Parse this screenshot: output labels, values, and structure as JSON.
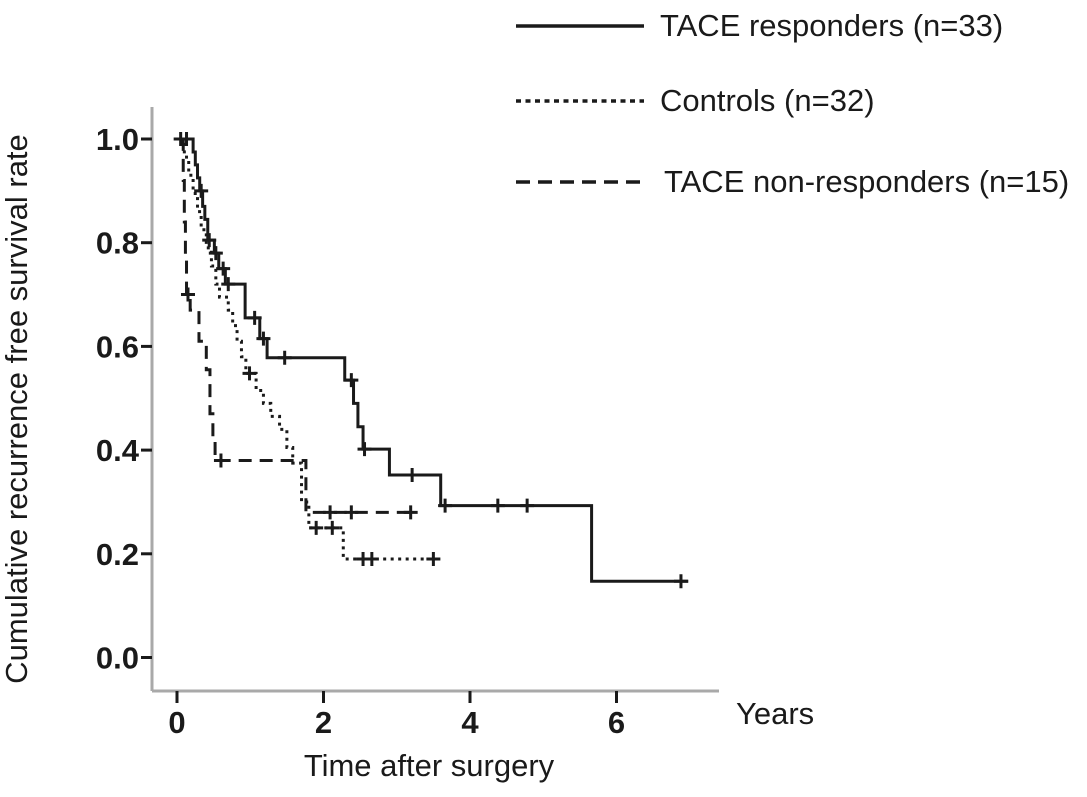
{
  "colors": {
    "curve": "#1a1a1a",
    "axis_line": "#a9a9a9",
    "tick": "#1a1a1a",
    "text": "#1a1a1a",
    "background": "#ffffff"
  },
  "chart_data": {
    "type": "line",
    "subtype": "kaplan-meier-step",
    "title": "",
    "xlabel": "Time after surgery",
    "x_unit_label": "Years",
    "ylabel": "Cumulative recurrence free survival rate",
    "xticks": [
      0,
      2,
      4,
      6
    ],
    "yticks": [
      0.0,
      0.2,
      0.4,
      0.6,
      0.8,
      1.0
    ],
    "xlim": [
      0,
      7.4
    ],
    "ylim": [
      0,
      1.0
    ],
    "grid": false,
    "legend_position": "top-right",
    "series": [
      {
        "name": "TACE responders (n=33)",
        "n": 33,
        "style": "solid",
        "steps": [
          [
            0.03,
            1.0
          ],
          [
            0.22,
            0.975
          ],
          [
            0.25,
            0.95
          ],
          [
            0.28,
            0.925
          ],
          [
            0.31,
            0.9
          ],
          [
            0.35,
            0.87
          ],
          [
            0.38,
            0.845
          ],
          [
            0.42,
            0.805
          ],
          [
            0.51,
            0.78
          ],
          [
            0.57,
            0.75
          ],
          [
            0.66,
            0.72
          ],
          [
            0.93,
            0.655
          ],
          [
            1.13,
            0.615
          ],
          [
            1.23,
            0.578
          ],
          [
            2.29,
            0.535
          ],
          [
            2.41,
            0.49
          ],
          [
            2.47,
            0.445
          ],
          [
            2.54,
            0.402
          ],
          [
            2.9,
            0.352
          ],
          [
            3.6,
            0.293
          ],
          [
            5.66,
            0.147
          ]
        ],
        "end_time": 6.98,
        "censors": [
          [
            0.05,
            1.0
          ],
          [
            0.13,
            1.0
          ],
          [
            0.33,
            0.9
          ],
          [
            0.44,
            0.805
          ],
          [
            0.53,
            0.78
          ],
          [
            0.63,
            0.75
          ],
          [
            0.7,
            0.72
          ],
          [
            1.06,
            0.655
          ],
          [
            1.18,
            0.615
          ],
          [
            1.47,
            0.578
          ],
          [
            2.38,
            0.535
          ],
          [
            2.56,
            0.402
          ],
          [
            3.21,
            0.352
          ],
          [
            3.66,
            0.293
          ],
          [
            4.38,
            0.293
          ],
          [
            4.78,
            0.293
          ],
          [
            6.88,
            0.147
          ]
        ]
      },
      {
        "name": "Controls (n=32)",
        "n": 32,
        "style": "dotted",
        "steps": [
          [
            0.05,
            1.0
          ],
          [
            0.1,
            0.965
          ],
          [
            0.16,
            0.93
          ],
          [
            0.22,
            0.895
          ],
          [
            0.28,
            0.86
          ],
          [
            0.33,
            0.825
          ],
          [
            0.4,
            0.79
          ],
          [
            0.47,
            0.755
          ],
          [
            0.53,
            0.72
          ],
          [
            0.58,
            0.695
          ],
          [
            0.7,
            0.67
          ],
          [
            0.76,
            0.64
          ],
          [
            0.82,
            0.61
          ],
          [
            0.88,
            0.58
          ],
          [
            0.94,
            0.548
          ],
          [
            1.08,
            0.515
          ],
          [
            1.18,
            0.49
          ],
          [
            1.28,
            0.465
          ],
          [
            1.4,
            0.44
          ],
          [
            1.5,
            0.405
          ],
          [
            1.58,
            0.375
          ],
          [
            1.7,
            0.3
          ],
          [
            1.8,
            0.25
          ],
          [
            2.27,
            0.19
          ]
        ],
        "end_time": 3.55,
        "censors": [
          [
            0.99,
            0.548
          ],
          [
            1.9,
            0.25
          ],
          [
            2.12,
            0.25
          ],
          [
            2.54,
            0.19
          ],
          [
            2.66,
            0.19
          ],
          [
            3.5,
            0.19
          ]
        ]
      },
      {
        "name": "TACE non-responders (n=15)",
        "n": 15,
        "style": "dashed",
        "steps": [
          [
            0.07,
            1.0
          ],
          [
            0.085,
            0.92
          ],
          [
            0.1,
            0.84
          ],
          [
            0.115,
            0.77
          ],
          [
            0.13,
            0.7
          ],
          [
            0.18,
            0.67
          ],
          [
            0.3,
            0.61
          ],
          [
            0.4,
            0.555
          ],
          [
            0.45,
            0.47
          ],
          [
            0.49,
            0.42
          ],
          [
            0.52,
            0.38
          ],
          [
            1.76,
            0.28
          ]
        ],
        "end_time": 3.28,
        "censors": [
          [
            0.15,
            0.7
          ],
          [
            0.6,
            0.38
          ],
          [
            2.09,
            0.28
          ],
          [
            2.38,
            0.28
          ],
          [
            3.19,
            0.28
          ]
        ]
      }
    ]
  }
}
